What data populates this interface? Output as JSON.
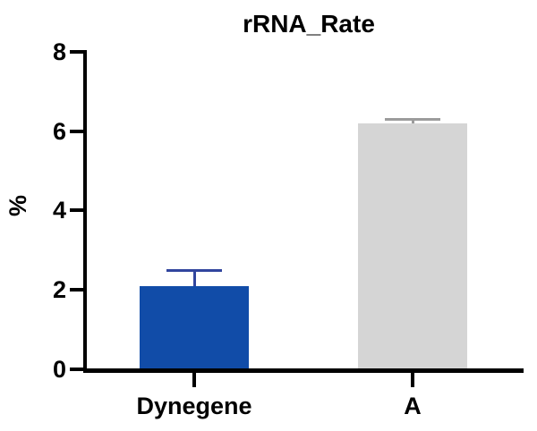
{
  "chart_data": {
    "type": "bar",
    "title": "rRNA_Rate",
    "ylabel": "%",
    "xlabel": "",
    "categories": [
      "Dynegene",
      "A"
    ],
    "series": [
      {
        "name": "rRNA_Rate",
        "values": [
          2.1,
          6.2
        ],
        "errors_upper": [
          0.4,
          0.1
        ]
      }
    ],
    "ylim": [
      0,
      8
    ],
    "yticks": [
      0,
      2,
      4,
      6,
      8
    ],
    "grid": false,
    "legend": false,
    "bar_colors": [
      "#114CA8",
      "#D5D5D5"
    ],
    "error_bar_colors": [
      "#31459E",
      "#9C9C9C"
    ],
    "axis_color": "#000000"
  }
}
